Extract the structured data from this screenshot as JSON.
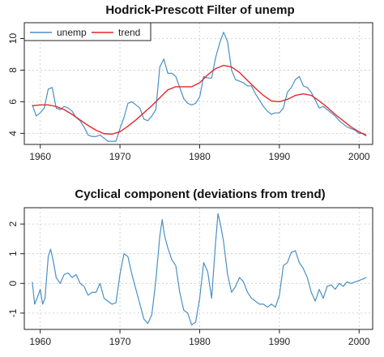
{
  "chart_data": [
    {
      "type": "line",
      "title": "Hodrick-Prescott Filter of unemp",
      "xlabel": "",
      "ylabel": "",
      "xlim": [
        1958,
        2001.7
      ],
      "ylim": [
        3.3,
        11
      ],
      "x_ticks": [
        1960,
        1970,
        1980,
        1990,
        2000
      ],
      "y_ticks": [
        4,
        6,
        8,
        10
      ],
      "grid": true,
      "legend": {
        "position": "top-left",
        "entries": [
          "unemp",
          "trend"
        ]
      },
      "series": [
        {
          "name": "unemp",
          "color": "#4a90c4",
          "x": [
            1959,
            1959.5,
            1960,
            1960.5,
            1961,
            1961.5,
            1962,
            1962.5,
            1963,
            1963.5,
            1964,
            1964.5,
            1965,
            1965.5,
            1966,
            1966.5,
            1967,
            1967.5,
            1968,
            1968.5,
            1969,
            1969.5,
            1970,
            1970.5,
            1971,
            1971.5,
            1972,
            1972.5,
            1973,
            1973.5,
            1974,
            1974.5,
            1975,
            1975.5,
            1976,
            1976.5,
            1977,
            1977.5,
            1978,
            1978.5,
            1979,
            1979.5,
            1980,
            1980.5,
            1981,
            1981.5,
            1982,
            1982.5,
            1983,
            1983.5,
            1984,
            1984.5,
            1985,
            1985.5,
            1986,
            1986.5,
            1987,
            1987.5,
            1988,
            1988.5,
            1989,
            1989.5,
            1990,
            1990.5,
            1991,
            1991.5,
            1992,
            1992.5,
            1993,
            1993.5,
            1994,
            1994.5,
            1995,
            1995.5,
            1996,
            1996.5,
            1997,
            1997.5,
            1998,
            1998.5,
            1999,
            1999.5,
            2000,
            2000.5,
            2000.9
          ],
          "values": [
            5.8,
            5.1,
            5.3,
            5.6,
            6.8,
            6.9,
            5.6,
            5.5,
            5.7,
            5.6,
            5.4,
            5.0,
            4.8,
            4.4,
            3.9,
            3.8,
            3.8,
            3.9,
            3.7,
            3.5,
            3.5,
            3.5,
            4.3,
            5.0,
            5.9,
            6.0,
            5.8,
            5.6,
            4.9,
            4.8,
            5.1,
            5.5,
            8.2,
            8.7,
            7.8,
            7.8,
            7.6,
            6.9,
            6.2,
            5.9,
            5.8,
            5.9,
            6.3,
            7.6,
            7.5,
            7.5,
            8.8,
            9.7,
            10.4,
            9.8,
            8.0,
            7.4,
            7.3,
            7.2,
            7.0,
            7.0,
            6.5,
            6.1,
            5.7,
            5.4,
            5.2,
            5.3,
            5.3,
            5.6,
            6.6,
            6.9,
            7.4,
            7.6,
            7.0,
            6.9,
            6.6,
            6.1,
            5.6,
            5.7,
            5.5,
            5.3,
            5.1,
            4.8,
            4.6,
            4.4,
            4.3,
            4.2,
            4.0,
            4.0,
            3.9
          ]
        },
        {
          "name": "trend",
          "color": "#e0282e",
          "x": [
            1959,
            1960,
            1961,
            1962,
            1963,
            1964,
            1965,
            1966,
            1967,
            1968,
            1969,
            1970,
            1971,
            1972,
            1973,
            1974,
            1975,
            1976,
            1977,
            1978,
            1979,
            1980,
            1981,
            1982,
            1983,
            1984,
            1985,
            1986,
            1987,
            1988,
            1989,
            1990,
            1991,
            1992,
            1993,
            1994,
            1995,
            1996,
            1997,
            1998,
            1999,
            2000,
            2000.9
          ],
          "values": [
            5.75,
            5.8,
            5.8,
            5.7,
            5.5,
            5.2,
            4.85,
            4.5,
            4.2,
            3.98,
            3.95,
            4.1,
            4.45,
            4.85,
            5.3,
            5.75,
            6.25,
            6.75,
            6.95,
            6.95,
            6.95,
            7.2,
            7.7,
            8.1,
            8.3,
            8.2,
            7.85,
            7.35,
            6.85,
            6.4,
            6.05,
            6.0,
            6.15,
            6.4,
            6.5,
            6.4,
            6.05,
            5.65,
            5.2,
            4.8,
            4.4,
            4.1,
            3.85
          ]
        }
      ]
    },
    {
      "type": "line",
      "title": "Cyclical component (deviations from trend)",
      "xlabel": "",
      "ylabel": "",
      "xlim": [
        1958,
        2001.7
      ],
      "ylim": [
        -1.55,
        2.55
      ],
      "x_ticks": [
        1960,
        1970,
        1980,
        1990,
        2000
      ],
      "y_ticks": [
        -1,
        0,
        1,
        2
      ],
      "grid": true,
      "series": [
        {
          "color": "#4a90c4",
          "x": [
            1959,
            1959.3,
            1959.6,
            1960,
            1960.3,
            1960.6,
            1961,
            1961.3,
            1961.6,
            1962,
            1962.5,
            1963,
            1963.5,
            1964,
            1964.5,
            1965,
            1965.5,
            1966,
            1966.5,
            1967,
            1967.5,
            1968,
            1968.5,
            1969,
            1969.5,
            1970,
            1970.5,
            1971,
            1971.5,
            1972,
            1972.5,
            1973,
            1973.5,
            1974,
            1974.5,
            1975,
            1975.3,
            1975.6,
            1976,
            1976.5,
            1977,
            1977.5,
            1978,
            1978.5,
            1979,
            1979.5,
            1980,
            1980.5,
            1981,
            1981.5,
            1982,
            1982.3,
            1982.6,
            1983,
            1983.5,
            1984,
            1984.5,
            1985,
            1985.5,
            1986,
            1986.5,
            1987,
            1987.5,
            1988,
            1988.5,
            1989,
            1989.5,
            1990,
            1990.5,
            1991,
            1991.5,
            1992,
            1992.5,
            1993,
            1993.5,
            1994,
            1994.5,
            1995,
            1995.5,
            1996,
            1996.5,
            1997,
            1997.5,
            1998,
            1998.5,
            1999,
            1999.5,
            2000,
            2000.5,
            2000.9
          ],
          "values": [
            0.05,
            -0.7,
            -0.5,
            -0.2,
            -0.7,
            -0.5,
            0.9,
            1.15,
            0.8,
            0.2,
            0.0,
            0.3,
            0.35,
            0.2,
            0.3,
            0.0,
            -0.1,
            -0.4,
            -0.3,
            -0.3,
            0.0,
            -0.5,
            -0.6,
            -0.7,
            -0.65,
            0.3,
            1.0,
            0.9,
            0.3,
            -0.2,
            -0.7,
            -1.2,
            -1.35,
            -1.05,
            0.1,
            1.6,
            2.15,
            1.6,
            1.2,
            0.8,
            0.6,
            -0.3,
            -0.9,
            -1.0,
            -1.4,
            -1.3,
            -0.5,
            0.7,
            0.4,
            -0.5,
            1.4,
            2.35,
            2.0,
            1.4,
            0.3,
            -0.3,
            -0.1,
            0.2,
            0.05,
            -0.3,
            -0.5,
            -0.6,
            -0.7,
            -0.7,
            -0.8,
            -0.7,
            -0.8,
            -0.4,
            0.6,
            0.7,
            1.05,
            1.1,
            0.7,
            0.5,
            0.2,
            -0.3,
            -0.6,
            -0.2,
            -0.5,
            -0.1,
            -0.05,
            -0.2,
            0.0,
            -0.1,
            0.05,
            0.0,
            0.05,
            0.1,
            0.15,
            0.2
          ]
        }
      ]
    }
  ]
}
